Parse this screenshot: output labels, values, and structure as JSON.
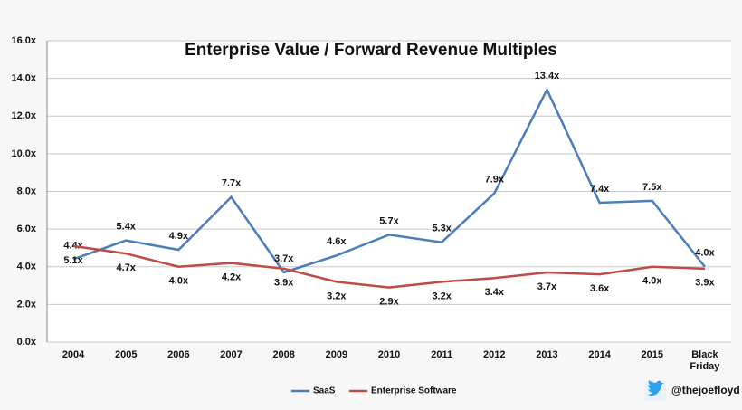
{
  "chart_data": {
    "type": "line",
    "title": "Enterprise Value / Forward Revenue Multiples",
    "categories": [
      "2004",
      "2005",
      "2006",
      "2007",
      "2008",
      "2009",
      "2010",
      "2011",
      "2012",
      "2013",
      "2014",
      "2015",
      "Black Friday"
    ],
    "series": [
      {
        "name": "SaaS",
        "color": "#4a7ebb",
        "values": [
          4.4,
          5.4,
          4.9,
          7.7,
          3.7,
          4.6,
          5.7,
          5.3,
          7.9,
          13.4,
          7.4,
          7.5,
          4.0
        ],
        "value_labels": [
          "4.4x",
          "5.4x",
          "4.9x",
          "7.7x",
          "3.7x",
          "4.6x",
          "5.7x",
          "5.3x",
          "7.9x",
          "13.4x",
          "7.4x",
          "7.5x",
          "4.0x"
        ]
      },
      {
        "name": "Enterprise Software",
        "color": "#be4b48",
        "values": [
          5.1,
          4.7,
          4.0,
          4.2,
          3.9,
          3.2,
          2.9,
          3.2,
          3.4,
          3.7,
          3.6,
          4.0,
          3.9
        ],
        "value_labels": [
          "5.1x",
          "4.7x",
          "4.0x",
          "4.2x",
          "3.9x",
          "3.2x",
          "2.9x",
          "3.2x",
          "3.4x",
          "3.7x",
          "3.6x",
          "4.0x",
          "3.9x"
        ]
      }
    ],
    "ylim": [
      0,
      16
    ],
    "yticks": [
      {
        "value": 0,
        "label": "0.0x"
      },
      {
        "value": 2,
        "label": "2.0x"
      },
      {
        "value": 4,
        "label": "4.0x"
      },
      {
        "value": 6,
        "label": "6.0x"
      },
      {
        "value": 8,
        "label": "8.0x"
      },
      {
        "value": 10,
        "label": "10.0x"
      },
      {
        "value": 12,
        "label": "12.0x"
      },
      {
        "value": 14,
        "label": "14.0x"
      },
      {
        "value": 16,
        "label": "16.0x"
      }
    ],
    "grid": true
  },
  "attribution": "@thejoefloyd"
}
